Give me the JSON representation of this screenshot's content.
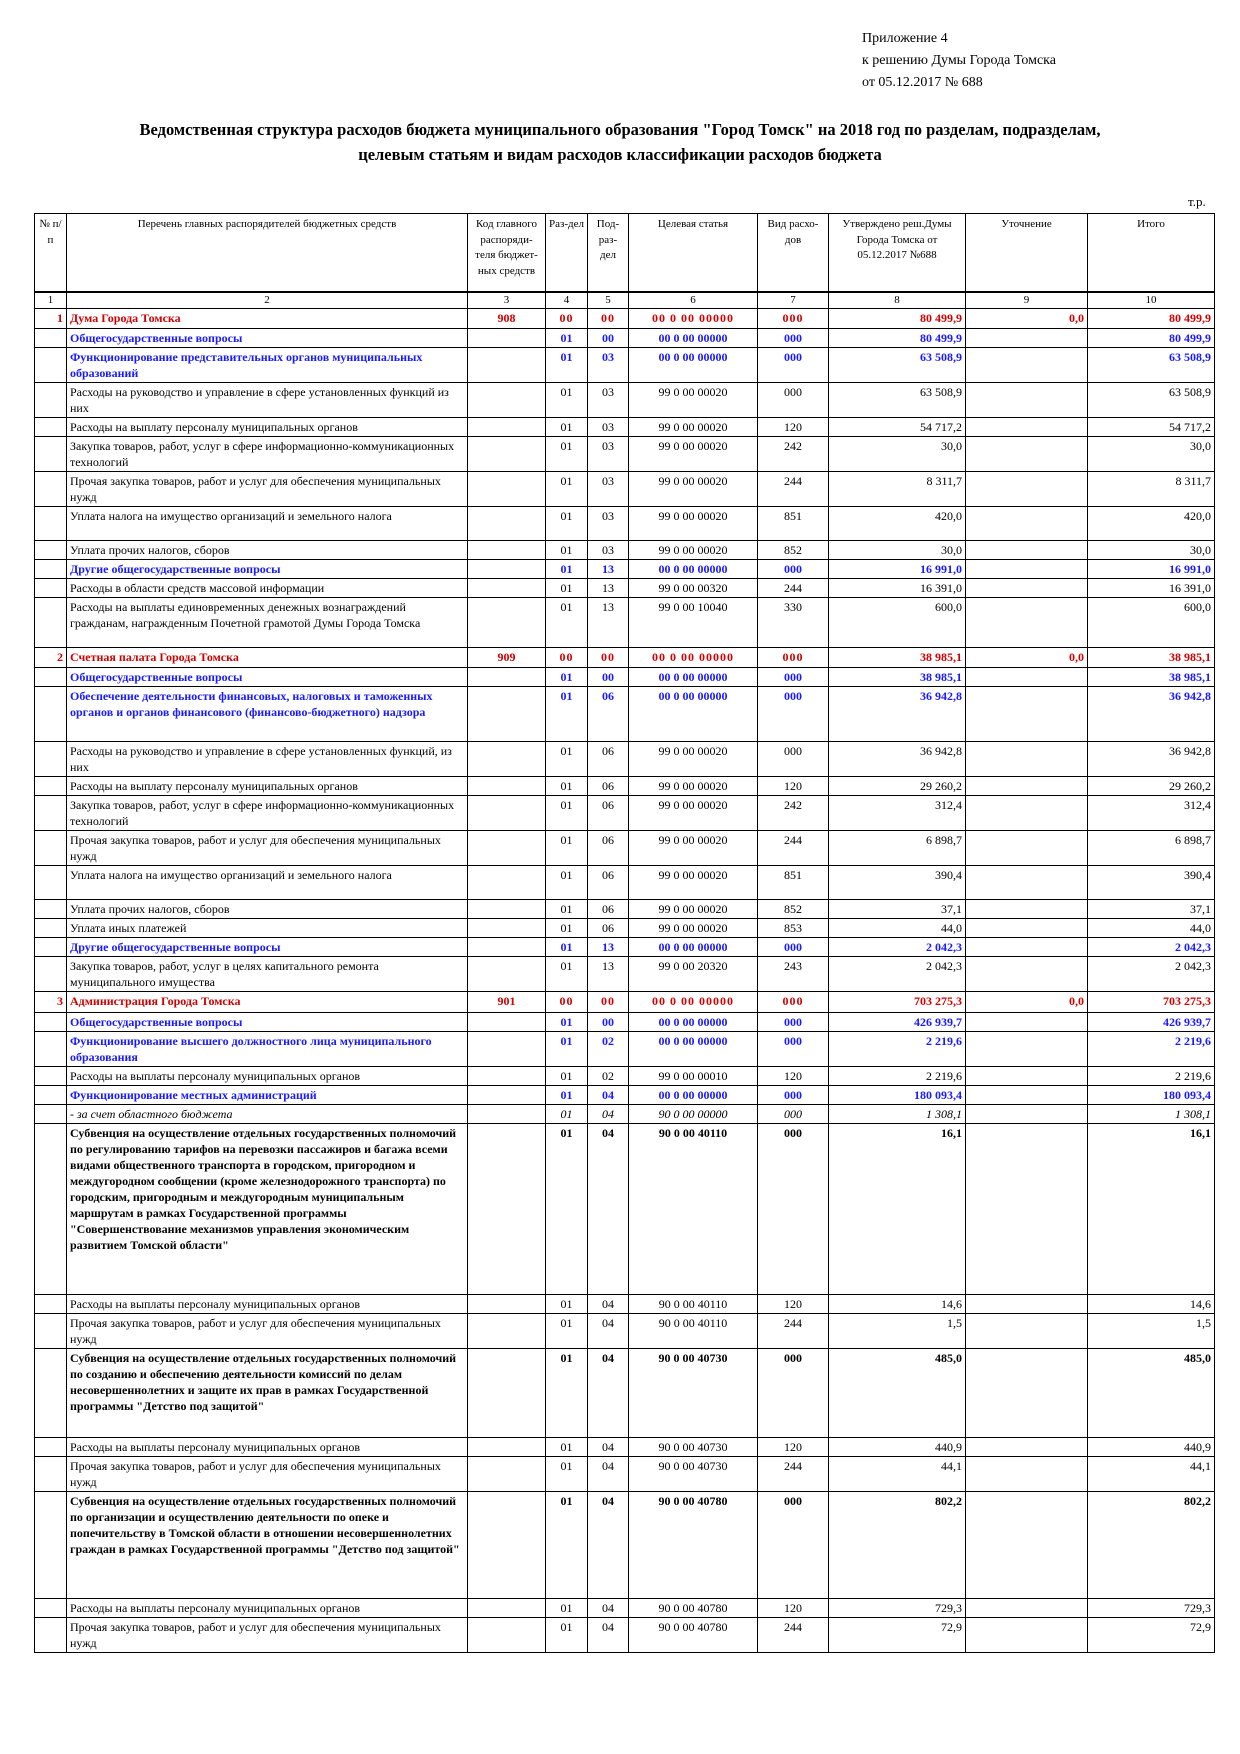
{
  "appendix": {
    "line1": "Приложение 4",
    "line2": "к решению Думы Города Томска",
    "line3": "от 05.12.2017  № 688"
  },
  "title": {
    "line1": "Ведомственная структура расходов бюджета муниципального образования \"Город Томск\" на 2018 год по разделам, подразделам,",
    "line2": "целевым статьям и видам расходов классификации расходов бюджета"
  },
  "units": "т.р.",
  "table": {
    "headers": {
      "num": "№ п/п",
      "name": "Перечень главных распорядителей бюджетных средств",
      "code": "Код главного распоряди-теля бюджет-ных средств",
      "razd": "Раз-дел",
      "pod": "Под-раз-дел",
      "cs": "Целевая статья",
      "vr": "Вид расхо-дов",
      "amt": "Утверждено реш.Думы Города Томска от 05.12.2017 №688",
      "utoch": "Уточнение",
      "itog": "Итого"
    },
    "col_numbers": [
      "1",
      "2",
      "3",
      "4",
      "5",
      "6",
      "7",
      "8",
      "9",
      "10"
    ],
    "rows": [
      {
        "level": "dept",
        "num": "1",
        "name": "Дума Города Томска",
        "code": "908",
        "razd": "00",
        "pod": "00",
        "cs": "00 0 00 00000",
        "vr": "000",
        "amt": "80 499,9",
        "utoch": "0,0",
        "itog": "80 499,9",
        "h": 20
      },
      {
        "level": "section",
        "num": "",
        "name": "Общегосударственные вопросы",
        "code": "",
        "razd": "01",
        "pod": "00",
        "cs": "00 0 00 00000",
        "vr": "000",
        "amt": "80 499,9",
        "utoch": "",
        "itog": "80 499,9",
        "h": 18
      },
      {
        "level": "sub",
        "num": "",
        "name": "Функционирование представительных органов муниципальных образований",
        "code": "",
        "razd": "01",
        "pod": "03",
        "cs": "00 0 00 00000",
        "vr": "000",
        "amt": "63 508,9",
        "utoch": "",
        "itog": "63 508,9",
        "h": 34
      },
      {
        "level": "plain",
        "num": "",
        "name": "Расходы на руководство и управление в сфере установленных функций из них",
        "code": "",
        "razd": "01",
        "pod": "03",
        "cs": "99 0 00 00020",
        "vr": "000",
        "amt": "63 508,9",
        "utoch": "",
        "itog": "63 508,9",
        "h": 32
      },
      {
        "level": "plain",
        "num": "",
        "name": "Расходы на выплату персоналу муниципальных органов",
        "code": "",
        "razd": "01",
        "pod": "03",
        "cs": "99 0 00 00020",
        "vr": "120",
        "amt": "54 717,2",
        "utoch": "",
        "itog": "54 717,2",
        "h": 17
      },
      {
        "level": "plain",
        "num": "",
        "name": "Закупка товаров, работ, услуг в сфере информационно-коммуникационных технологий",
        "code": "",
        "razd": "01",
        "pod": "03",
        "cs": "99 0 00 00020",
        "vr": "242",
        "amt": "30,0",
        "utoch": "",
        "itog": "30,0",
        "h": 33
      },
      {
        "level": "plain",
        "num": "",
        "name": "Прочая закупка товаров, работ и услуг для обеспечения муниципальных нужд",
        "code": "",
        "razd": "01",
        "pod": "03",
        "cs": "99 0 00 00020",
        "vr": "244",
        "amt": "8 311,7",
        "utoch": "",
        "itog": "8 311,7",
        "h": 33
      },
      {
        "level": "plain",
        "num": "",
        "name": "Уплата налога на имущество организаций и земельного налога",
        "code": "",
        "razd": "01",
        "pod": "03",
        "cs": "99 0 00 00020",
        "vr": "851",
        "amt": "420,0",
        "utoch": "",
        "itog": "420,0",
        "h": 34
      },
      {
        "level": "plain",
        "num": "",
        "name": "Уплата прочих налогов, сборов",
        "code": "",
        "razd": "01",
        "pod": "03",
        "cs": "99 0 00 00020",
        "vr": "852",
        "amt": "30,0",
        "utoch": "",
        "itog": "30,0",
        "h": 17
      },
      {
        "level": "sub",
        "num": "",
        "name": "Другие общегосударственные вопросы",
        "code": "",
        "razd": "01",
        "pod": "13",
        "cs": "00 0 00 00000",
        "vr": "000",
        "amt": "16 991,0",
        "utoch": "",
        "itog": "16 991,0",
        "h": 17
      },
      {
        "level": "plain",
        "num": "",
        "name": "Расходы в области средств массовой информации",
        "code": "",
        "razd": "01",
        "pod": "13",
        "cs": "99 0 00 00320",
        "vr": "244",
        "amt": "16 391,0",
        "utoch": "",
        "itog": "16 391,0",
        "h": 17
      },
      {
        "level": "plain",
        "num": "",
        "name": "Расходы на выплаты единовременных денежных вознаграждений гражданам, награжденным Почетной грамотой Думы Города Томска",
        "code": "",
        "razd": "01",
        "pod": "13",
        "cs": "99 0 00 10040",
        "vr": "330",
        "amt": "600,0",
        "utoch": "",
        "itog": "600,0",
        "h": 50
      },
      {
        "level": "dept",
        "num": "2",
        "name": "Счетная палата Города Томска",
        "code": "909",
        "razd": "00",
        "pod": "00",
        "cs": "00 0 00 00000",
        "vr": "000",
        "amt": "38 985,1",
        "utoch": "0,0",
        "itog": "38 985,1",
        "h": 20
      },
      {
        "level": "section",
        "num": "",
        "name": "Общегосударственные вопросы",
        "code": "",
        "razd": "01",
        "pod": "00",
        "cs": "00 0 00 00000",
        "vr": "000",
        "amt": "38 985,1",
        "utoch": "",
        "itog": "38 985,1",
        "h": 18
      },
      {
        "level": "sub",
        "num": "",
        "name": "Обеспечение деятельности финансовых, налоговых и таможенных органов и органов финансового (финансово-бюджетного) надзора",
        "code": "",
        "razd": "01",
        "pod": "06",
        "cs": "00 0 00 00000",
        "vr": "000",
        "amt": "36 942,8",
        "utoch": "",
        "itog": "36 942,8",
        "h": 55
      },
      {
        "level": "plain",
        "num": "",
        "name": "Расходы на руководство и управление в сфере установленных функций, из них",
        "code": "",
        "razd": "01",
        "pod": "06",
        "cs": "99 0 00 00020",
        "vr": "000",
        "amt": "36 942,8",
        "utoch": "",
        "itog": "36 942,8",
        "h": 32
      },
      {
        "level": "plain",
        "num": "",
        "name": "Расходы на выплату персоналу муниципальных органов",
        "code": "",
        "razd": "01",
        "pod": "06",
        "cs": "99 0 00 00020",
        "vr": "120",
        "amt": "29 260,2",
        "utoch": "",
        "itog": "29 260,2",
        "h": 17
      },
      {
        "level": "plain",
        "num": "",
        "name": "Закупка товаров, работ, услуг в сфере информационно-коммуникационных технологий",
        "code": "",
        "razd": "01",
        "pod": "06",
        "cs": "99 0 00 00020",
        "vr": "242",
        "amt": "312,4",
        "utoch": "",
        "itog": "312,4",
        "h": 33
      },
      {
        "level": "plain",
        "num": "",
        "name": "Прочая закупка товаров, работ и услуг для обеспечения муниципальных нужд",
        "code": "",
        "razd": "01",
        "pod": "06",
        "cs": "99 0 00 00020",
        "vr": "244",
        "amt": "6 898,7",
        "utoch": "",
        "itog": "6 898,7",
        "h": 33
      },
      {
        "level": "plain",
        "num": "",
        "name": "Уплата налога на имущество организаций и земельного налога",
        "code": "",
        "razd": "01",
        "pod": "06",
        "cs": "99 0 00 00020",
        "vr": "851",
        "amt": "390,4",
        "utoch": "",
        "itog": "390,4",
        "h": 34
      },
      {
        "level": "plain",
        "num": "",
        "name": "Уплата прочих налогов, сборов",
        "code": "",
        "razd": "01",
        "pod": "06",
        "cs": "99 0 00 00020",
        "vr": "852",
        "amt": "37,1",
        "utoch": "",
        "itog": "37,1",
        "h": 17
      },
      {
        "level": "plain",
        "num": "",
        "name": "Уплата иных платежей",
        "code": "",
        "razd": "01",
        "pod": "06",
        "cs": "99 0 00 00020",
        "vr": "853",
        "amt": "44,0",
        "utoch": "",
        "itog": "44,0",
        "h": 17
      },
      {
        "level": "sub",
        "num": "",
        "name": "Другие общегосударственные вопросы",
        "code": "",
        "razd": "01",
        "pod": "13",
        "cs": "00 0 00 00000",
        "vr": "000",
        "amt": "2 042,3",
        "utoch": "",
        "itog": "2 042,3",
        "h": 17
      },
      {
        "level": "plain",
        "num": "",
        "name": "Закупка товаров, работ, услуг в целях капитального ремонта муниципального имущества",
        "code": "",
        "razd": "01",
        "pod": "13",
        "cs": "99 0 00 20320",
        "vr": "243",
        "amt": "2 042,3",
        "utoch": "",
        "itog": "2 042,3",
        "h": 33
      },
      {
        "level": "dept",
        "num": "3",
        "name": "Администрация Города Томска",
        "code": "901",
        "razd": "00",
        "pod": "00",
        "cs": "00 0 00 00000",
        "vr": "000",
        "amt": "703 275,3",
        "utoch": "0,0",
        "itog": "703 275,3",
        "h": 21
      },
      {
        "level": "section",
        "num": "",
        "name": "Общегосударственные вопросы",
        "code": "",
        "razd": "01",
        "pod": "00",
        "cs": "00 0 00 00000",
        "vr": "000",
        "amt": "426 939,7",
        "utoch": "",
        "itog": "426 939,7",
        "h": 18
      },
      {
        "level": "sub",
        "num": "",
        "name": "Функционирование высшего должностного лица муниципального образования",
        "code": "",
        "razd": "01",
        "pod": "02",
        "cs": "00 0 00 00000",
        "vr": "000",
        "amt": "2 219,6",
        "utoch": "",
        "itog": "2 219,6",
        "h": 34
      },
      {
        "level": "plain",
        "num": "",
        "name": "Расходы на выплаты персоналу муниципальных органов",
        "code": "",
        "razd": "01",
        "pod": "02",
        "cs": "99 0 00 00010",
        "vr": "120",
        "amt": "2 219,6",
        "utoch": "",
        "itog": "2 219,6",
        "h": 17
      },
      {
        "level": "sub",
        "num": "",
        "name": "Функционирование местных администраций",
        "code": "",
        "razd": "01",
        "pod": "04",
        "cs": "00 0 00 00000",
        "vr": "000",
        "amt": "180 093,4",
        "utoch": "",
        "itog": "180 093,4",
        "h": 17
      },
      {
        "level": "ital",
        "num": "",
        "name": "- за счет областного бюджета",
        "code": "",
        "razd": "01",
        "pod": "04",
        "cs": "90 0 00 00000",
        "vr": "000",
        "amt": "1 308,1",
        "utoch": "",
        "itog": "1 308,1",
        "h": 15
      },
      {
        "level": "bold",
        "num": "",
        "name": "Субвенция на осуществление отдельных государственных полномочий по регулированию тарифов на перевозки пассажиров и багажа всеми видами общественного транспорта в городском, пригородном и междугородном сообщении (кроме железнодорожного транспорта) по городским, пригородным и междугородным муниципальным маршрутам в рамках Государственной программы \"Совершенствование механизмов управления экономическим развитием Томской области\"",
        "code": "",
        "razd": "01",
        "pod": "04",
        "cs": "90 0 00 40110",
        "vr": "000",
        "amt": "16,1",
        "utoch": "",
        "itog": "16,1",
        "h": 171
      },
      {
        "level": "plain",
        "num": "",
        "name": "Расходы на выплаты персоналу муниципальных органов",
        "code": "",
        "razd": "01",
        "pod": "04",
        "cs": "90 0 00 40110",
        "vr": "120",
        "amt": "14,6",
        "utoch": "",
        "itog": "14,6",
        "h": 17
      },
      {
        "level": "plain",
        "num": "",
        "name": "Прочая закупка товаров, работ и услуг для обеспечения муниципальных нужд",
        "code": "",
        "razd": "01",
        "pod": "04",
        "cs": "90 0 00 40110",
        "vr": "244",
        "amt": "1,5",
        "utoch": "",
        "itog": "1,5",
        "h": 33
      },
      {
        "level": "bold",
        "num": "",
        "name": "Субвенция на осуществление отдельных государственных полномочий по созданию и обеспечению деятельности комиссий по делам несовершеннолетних и защите их прав в рамках Государственной программы \"Детство под защитой\"",
        "code": "",
        "razd": "01",
        "pod": "04",
        "cs": "90 0 00 40730",
        "vr": "000",
        "amt": "485,0",
        "utoch": "",
        "itog": "485,0",
        "h": 89
      },
      {
        "level": "plain",
        "num": "",
        "name": "Расходы на выплаты персоналу муниципальных органов",
        "code": "",
        "razd": "01",
        "pod": "04",
        "cs": "90 0 00 40730",
        "vr": "120",
        "amt": "440,9",
        "utoch": "",
        "itog": "440,9",
        "h": 17
      },
      {
        "level": "plain",
        "num": "",
        "name": "Прочая закупка товаров, работ и услуг для обеспечения муниципальных нужд",
        "code": "",
        "razd": "01",
        "pod": "04",
        "cs": "90 0 00 40730",
        "vr": "244",
        "amt": "44,1",
        "utoch": "",
        "itog": "44,1",
        "h": 33
      },
      {
        "level": "bold",
        "num": "",
        "name": "Субвенция на осуществление отдельных государственных полномочий по организации и осуществлению деятельности по опеке и попечительству в Томской области в отношении несовершеннолетних граждан в рамках Государственной программы \"Детство под защитой\"",
        "code": "",
        "razd": "01",
        "pod": "04",
        "cs": "90 0 00 40780",
        "vr": "000",
        "amt": "802,2",
        "utoch": "",
        "itog": "802,2",
        "h": 107
      },
      {
        "level": "plain",
        "num": "",
        "name": "Расходы на выплаты персоналу муниципальных органов",
        "code": "",
        "razd": "01",
        "pod": "04",
        "cs": "90 0 00 40780",
        "vr": "120",
        "amt": "729,3",
        "utoch": "",
        "itog": "729,3",
        "h": 17
      },
      {
        "level": "plain",
        "num": "",
        "name": "Прочая закупка товаров, работ и услуг для обеспечения муниципальных нужд",
        "code": "",
        "razd": "01",
        "pod": "04",
        "cs": "90 0 00 40780",
        "vr": "244",
        "amt": "72,9",
        "utoch": "",
        "itog": "72,9",
        "h": 33
      }
    ]
  }
}
